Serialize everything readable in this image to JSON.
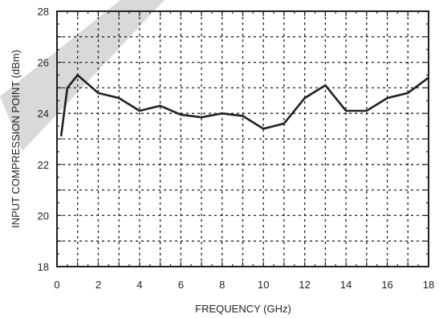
{
  "chart_data": {
    "type": "line",
    "title": "",
    "xlabel": "FREQUENCY (GHz)",
    "ylabel": "INPUT COMPRESSION POINT (dBm)",
    "xlim": [
      0,
      18
    ],
    "ylim": [
      18,
      28
    ],
    "xticks": [
      0,
      2,
      4,
      6,
      8,
      10,
      12,
      14,
      16,
      18
    ],
    "yticks": [
      18,
      20,
      22,
      24,
      26,
      28
    ],
    "grid": true,
    "grid_style": "dashed",
    "legend": "none",
    "colors": {
      "line": "#231f20",
      "grid": "#231f20",
      "frame": "#231f20",
      "watermark": "#d9d9d9"
    },
    "series": [
      {
        "x": [
          0.2,
          0.5,
          1,
          2,
          3,
          4,
          5,
          6,
          7,
          8,
          9,
          10,
          11,
          12,
          13,
          14,
          15,
          16,
          17,
          18
        ],
        "values": [
          23.1,
          25.0,
          25.5,
          24.8,
          24.6,
          24.1,
          24.3,
          23.95,
          23.85,
          24.0,
          23.9,
          23.4,
          23.6,
          24.6,
          25.1,
          24.1,
          24.1,
          24.6,
          24.8,
          25.4
        ]
      }
    ]
  }
}
